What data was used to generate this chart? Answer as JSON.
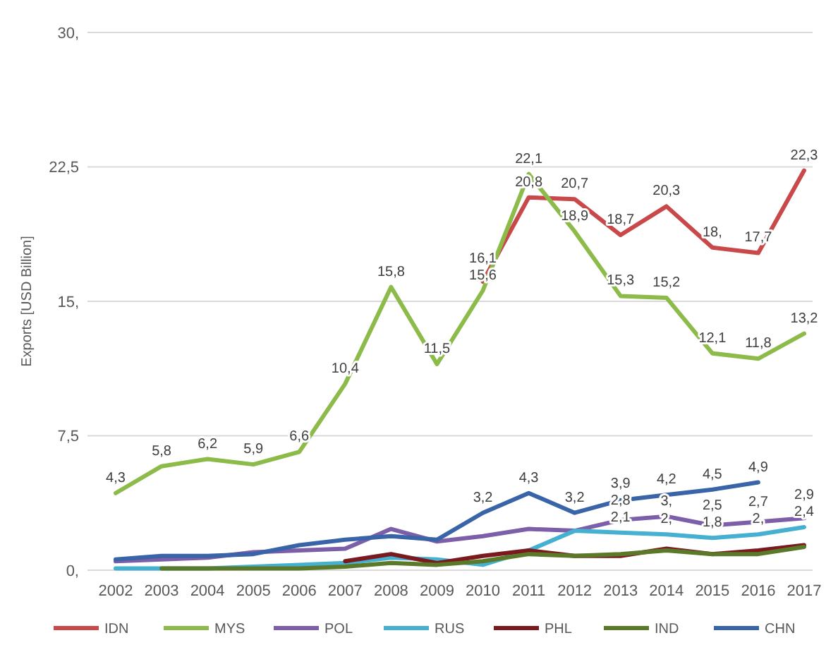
{
  "chart_data": {
    "type": "line",
    "ylabel": "Exports [USD Billion]",
    "categories": [
      "2002",
      "2003",
      "2004",
      "2005",
      "2006",
      "2007",
      "2008",
      "2009",
      "2010",
      "2011",
      "2012",
      "2013",
      "2014",
      "2015",
      "2016",
      "2017"
    ],
    "ylim": [
      0,
      30
    ],
    "yticks": [
      {
        "value": 0,
        "label": "0,"
      },
      {
        "value": 7.5,
        "label": "7,5"
      },
      {
        "value": 15,
        "label": "15,"
      },
      {
        "value": 22.5,
        "label": "22,5"
      },
      {
        "value": 30,
        "label": "30,"
      }
    ],
    "grid": "y",
    "legend": "bottom",
    "marker": "none",
    "line_style": "solid",
    "series": [
      {
        "name": "IDN",
        "color": "#c9484a",
        "values": [
          null,
          null,
          null,
          null,
          null,
          null,
          null,
          null,
          16.1,
          20.8,
          20.7,
          18.7,
          20.3,
          18,
          17.7,
          22.3
        ],
        "value_labels": [
          null,
          null,
          null,
          null,
          null,
          null,
          null,
          null,
          "16,1",
          "20,8",
          "20,7",
          "18,7",
          "20,3",
          "18,",
          "17,7",
          "22,3"
        ]
      },
      {
        "name": "MYS",
        "color": "#8dbb4a",
        "values": [
          4.3,
          5.8,
          6.2,
          5.9,
          6.6,
          10.4,
          15.8,
          11.5,
          15.6,
          22.1,
          18.9,
          15.3,
          15.2,
          12.1,
          11.8,
          13.2
        ],
        "value_labels": [
          "4,3",
          "5,8",
          "6,2",
          "5,9",
          "6,6",
          "10,4",
          "15,8",
          "11,5",
          "15,6",
          "22,1",
          "18,9",
          "15,3",
          "15,2",
          "12,1",
          "11,8",
          "13,2"
        ]
      },
      {
        "name": "POL",
        "color": "#7c5fa8",
        "values": [
          0.5,
          0.6,
          0.7,
          1,
          1.1,
          1.2,
          2.3,
          1.6,
          1.9,
          2.3,
          2.2,
          2.8,
          3,
          2.5,
          2.7,
          2.9
        ],
        "value_labels": [
          null,
          null,
          null,
          null,
          null,
          null,
          null,
          null,
          null,
          null,
          null,
          "2,8",
          "3,",
          "2,5",
          "2,7",
          "2,9"
        ]
      },
      {
        "name": "RUS",
        "color": "#46b0d0",
        "values": [
          0.1,
          0.1,
          0.1,
          0.2,
          0.3,
          0.4,
          0.7,
          0.6,
          0.3,
          1.1,
          2.2,
          2.1,
          2,
          1.8,
          2,
          2.4
        ],
        "value_labels": [
          null,
          null,
          null,
          null,
          null,
          null,
          null,
          null,
          null,
          null,
          null,
          "2,1",
          "2,",
          "1,8",
          "2,",
          "2,4"
        ]
      },
      {
        "name": "PHL",
        "color": "#7b1a1e",
        "values": [
          null,
          null,
          null,
          null,
          null,
          0.5,
          0.9,
          0.4,
          0.8,
          1.1,
          0.8,
          0.8,
          1.2,
          0.9,
          1.1,
          1.4
        ],
        "value_labels": [
          null,
          null,
          null,
          null,
          null,
          null,
          null,
          null,
          null,
          null,
          null,
          null,
          null,
          null,
          null,
          null
        ]
      },
      {
        "name": "IND",
        "color": "#5a7a2a",
        "values": [
          null,
          0.1,
          0.1,
          0.1,
          0.1,
          0.2,
          0.4,
          0.3,
          0.5,
          0.9,
          0.8,
          0.9,
          1.1,
          0.9,
          0.9,
          1.3
        ],
        "value_labels": [
          null,
          null,
          null,
          null,
          null,
          null,
          null,
          null,
          null,
          null,
          null,
          null,
          null,
          null,
          null,
          null
        ]
      },
      {
        "name": "CHN",
        "color": "#3a64a8",
        "values": [
          0.6,
          0.8,
          0.8,
          0.9,
          1.4,
          1.7,
          1.9,
          1.7,
          3.2,
          4.3,
          3.2,
          3.9,
          4.2,
          4.5,
          4.9,
          null
        ],
        "value_labels": [
          null,
          null,
          null,
          null,
          null,
          null,
          null,
          null,
          "3,2",
          "4,3",
          "3,2",
          "3,9",
          "4,2",
          "4,5",
          "4,9",
          null
        ]
      }
    ]
  }
}
